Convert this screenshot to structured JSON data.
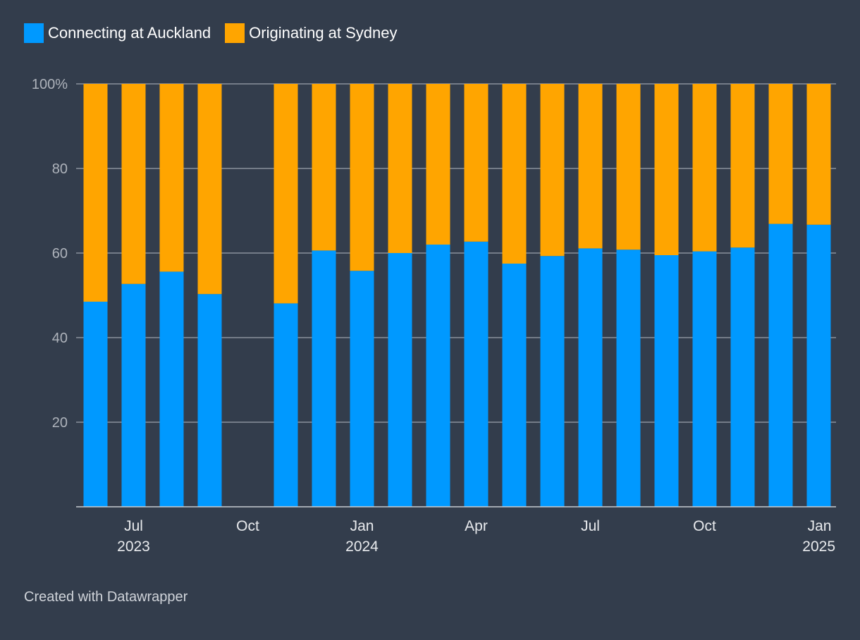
{
  "chart_data": {
    "type": "bar",
    "stacked": true,
    "title": "",
    "xlabel": "",
    "ylabel": "",
    "ylim": [
      0,
      100
    ],
    "yticks": [
      {
        "value": 20,
        "label": "20"
      },
      {
        "value": 40,
        "label": "40"
      },
      {
        "value": 60,
        "label": "60"
      },
      {
        "value": 80,
        "label": "80"
      },
      {
        "value": 100,
        "label": "100%"
      }
    ],
    "categories": [
      "2023-06",
      "2023-07",
      "2023-08",
      "2023-09",
      "2023-10",
      "2023-11",
      "2023-12",
      "2024-01",
      "2024-02",
      "2024-03",
      "2024-04",
      "2024-05",
      "2024-06",
      "2024-07",
      "2024-08",
      "2024-09",
      "2024-10",
      "2024-11",
      "2024-12",
      "2025-01"
    ],
    "series": [
      {
        "name": "Connecting at Auckland",
        "color": "#0099ff",
        "values": [
          48.5,
          52.7,
          55.6,
          50.3,
          null,
          48.1,
          60.6,
          55.8,
          60.0,
          62.0,
          62.7,
          57.5,
          59.3,
          61.1,
          60.8,
          59.5,
          60.4,
          61.3,
          66.9,
          66.7
        ]
      },
      {
        "name": "Originating at Sydney",
        "color": "#ffa500",
        "values": [
          51.5,
          47.3,
          44.4,
          49.7,
          null,
          51.9,
          39.4,
          44.2,
          40.0,
          38.0,
          37.3,
          42.5,
          40.7,
          38.9,
          39.2,
          40.5,
          39.6,
          38.7,
          33.1,
          33.3
        ]
      }
    ],
    "xticks": [
      {
        "index": 1,
        "month": "Jul",
        "year": "2023"
      },
      {
        "index": 4,
        "month": "Oct",
        "year": ""
      },
      {
        "index": 7,
        "month": "Jan",
        "year": "2024"
      },
      {
        "index": 10,
        "month": "Apr",
        "year": ""
      },
      {
        "index": 13,
        "month": "Jul",
        "year": ""
      },
      {
        "index": 16,
        "month": "Oct",
        "year": ""
      },
      {
        "index": 19,
        "month": "Jan",
        "year": "2025"
      }
    ]
  },
  "footer": {
    "credit": "Created with Datawrapper"
  }
}
